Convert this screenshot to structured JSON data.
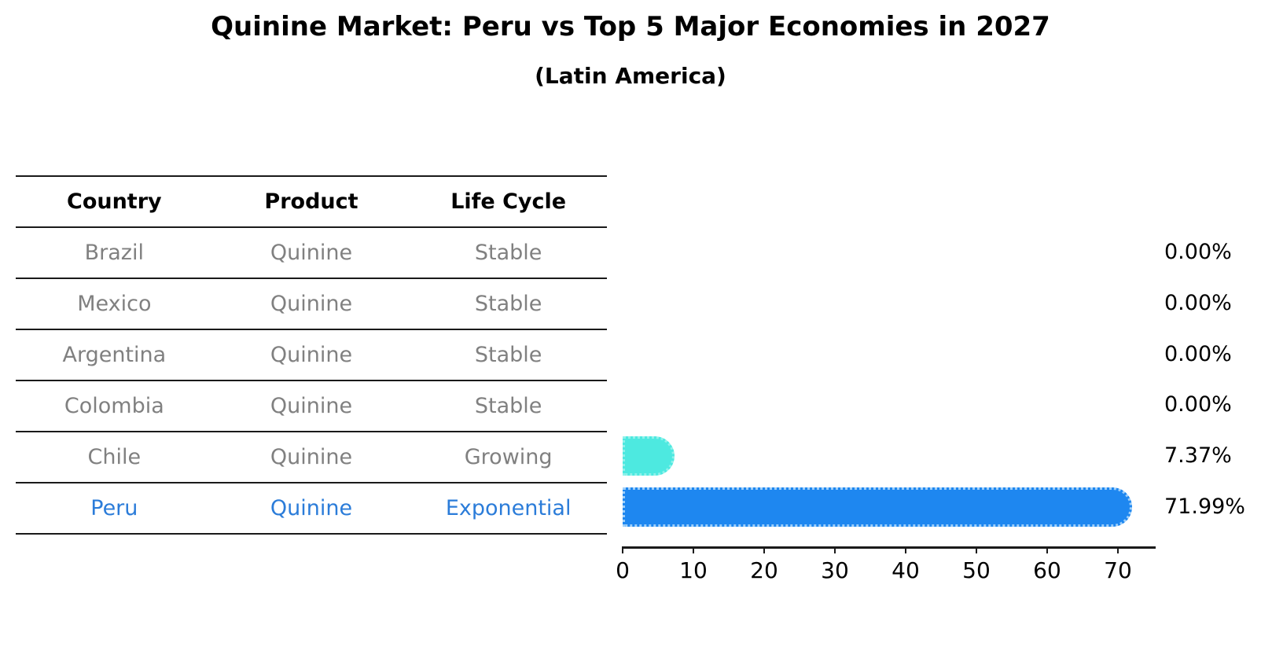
{
  "title": "Quinine Market: Peru vs Top 5 Major Economies in 2027",
  "subtitle": "(Latin America)",
  "table": {
    "headers": [
      "Country",
      "Product",
      "Life Cycle"
    ],
    "rows": [
      {
        "country": "Brazil",
        "product": "Quinine",
        "life_cycle": "Stable",
        "highlighted": false
      },
      {
        "country": "Mexico",
        "product": "Quinine",
        "life_cycle": "Stable",
        "highlighted": false
      },
      {
        "country": "Argentina",
        "product": "Quinine",
        "life_cycle": "Stable",
        "highlighted": false
      },
      {
        "country": "Colombia",
        "product": "Quinine",
        "life_cycle": "Stable",
        "highlighted": false
      },
      {
        "country": "Chile",
        "product": "Quinine",
        "life_cycle": "Growing",
        "highlighted": false
      },
      {
        "country": "Peru",
        "product": "Quinine",
        "life_cycle": "Exponential",
        "highlighted": true
      }
    ]
  },
  "chart_data": {
    "type": "bar",
    "orientation": "horizontal",
    "title": "Quinine Market: Peru vs Top 5 Major Economies in 2027",
    "subtitle": "(Latin America)",
    "categories": [
      "Brazil",
      "Mexico",
      "Argentina",
      "Colombia",
      "Chile",
      "Peru"
    ],
    "values": [
      0.0,
      0.0,
      0.0,
      0.0,
      7.37,
      71.99
    ],
    "value_labels": [
      "0.00%",
      "0.00%",
      "0.00%",
      "0.00%",
      "7.37%",
      "71.99%"
    ],
    "bar_colors": [
      null,
      null,
      null,
      null,
      "#4DE9E0",
      "#1E87F0"
    ],
    "bar_edge_colors": [
      null,
      null,
      null,
      null,
      "#8FF2EB",
      "#9ECFFA"
    ],
    "x_ticks": [
      0,
      10,
      20,
      30,
      40,
      50,
      60,
      70
    ],
    "xlim": [
      0,
      75.3
    ],
    "xlabel": "",
    "ylabel": "",
    "grid": false,
    "legend": false
  },
  "colors": {
    "title_text": "#000000",
    "header_text": "#000000",
    "row_text": "#808080",
    "highlight_text": "#2B7CD9",
    "axis_line": "#1A1A1A",
    "chile_bar": "#4DE9E0",
    "peru_bar": "#1E87F0",
    "background": "#FFFFFF"
  }
}
